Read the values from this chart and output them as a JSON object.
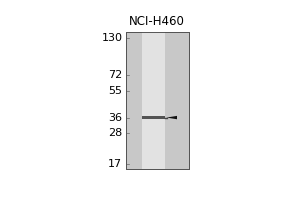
{
  "title": "NCI-H460",
  "molecular_weights": [
    130,
    72,
    55,
    36,
    28,
    17
  ],
  "band_mw": 36,
  "blot_bg_color": "#c8c8c8",
  "lane_color": "#e2e2e2",
  "band_color": "#444444",
  "outer_bg": "#ffffff",
  "border_color": "#555555",
  "arrow_color": "#111111",
  "title_fontsize": 8.5,
  "label_fontsize": 8,
  "fig_width": 3.0,
  "fig_height": 2.0,
  "dpi": 100
}
